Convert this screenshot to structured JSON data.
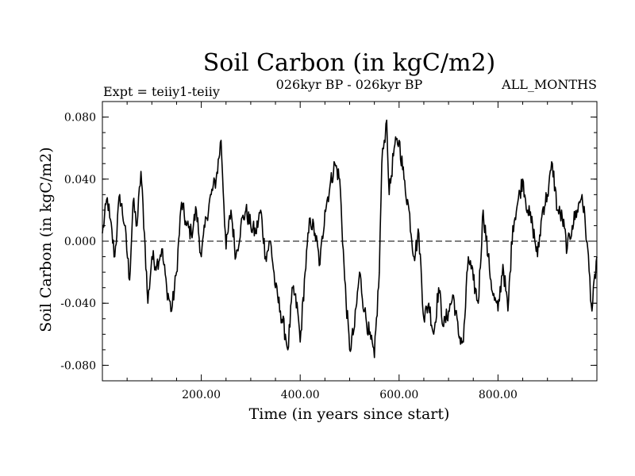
{
  "chart_data": {
    "type": "line",
    "title": "Soil Carbon (in kgC/m2)",
    "subtitle_left": "Expt = teiiy1-teiiy",
    "subtitle_center": "026kyr BP - 026kyr BP",
    "subtitle_right": "ALL_MONTHS",
    "xlabel": "Time (in years since start)",
    "ylabel": "Soil Carbon (in kgC/m2)",
    "xlim": [
      0,
      1000
    ],
    "ylim": [
      -0.09,
      0.09
    ],
    "xticks": [
      200,
      400,
      600,
      800
    ],
    "xtick_labels": [
      "200.00",
      "400.00",
      "600.00",
      "800.00"
    ],
    "yticks": [
      0.08,
      0.04,
      0.0,
      -0.04,
      -0.08
    ],
    "ytick_labels": [
      "0.080",
      "0.040",
      "0.000",
      "-0.040",
      "-0.080"
    ],
    "zero_line": {
      "y": 0.0,
      "style": "dashed"
    },
    "series": [
      {
        "color": "#000000",
        "x": [
          0,
          10,
          15,
          25,
          35,
          45,
          55,
          62,
          70,
          78,
          85,
          92,
          100,
          110,
          120,
          130,
          140,
          150,
          160,
          170,
          180,
          190,
          200,
          210,
          220,
          230,
          240,
          250,
          260,
          270,
          280,
          290,
          300,
          310,
          320,
          330,
          340,
          350,
          360,
          370,
          375,
          385,
          395,
          400,
          410,
          420,
          430,
          440,
          450,
          460,
          470,
          480,
          490,
          500,
          510,
          520,
          530,
          540,
          550,
          560,
          565,
          570,
          575,
          580,
          590,
          600,
          610,
          620,
          630,
          640,
          650,
          660,
          670,
          680,
          690,
          700,
          710,
          720,
          730,
          740,
          750,
          760,
          770,
          780,
          790,
          800,
          810,
          820,
          830,
          840,
          850,
          860,
          870,
          880,
          890,
          900,
          910,
          920,
          930,
          940,
          950,
          960,
          970,
          980,
          990,
          1000
        ],
        "values": [
          0.005,
          0.028,
          0.015,
          -0.01,
          0.03,
          0.01,
          -0.025,
          0.025,
          0.01,
          0.045,
          0.005,
          -0.04,
          -0.01,
          -0.015,
          -0.005,
          -0.03,
          -0.045,
          -0.02,
          0.025,
          0.01,
          0.005,
          0.02,
          -0.01,
          0.015,
          0.03,
          0.04,
          0.065,
          -0.005,
          0.02,
          -0.01,
          0.01,
          0.02,
          0.01,
          0.005,
          0.02,
          -0.01,
          0.0,
          -0.03,
          -0.045,
          -0.06,
          -0.07,
          -0.03,
          -0.045,
          -0.065,
          -0.02,
          0.015,
          0.005,
          -0.015,
          0.02,
          0.035,
          0.05,
          0.04,
          -0.025,
          -0.07,
          -0.055,
          -0.02,
          -0.045,
          -0.06,
          -0.075,
          -0.02,
          0.05,
          0.065,
          0.078,
          0.03,
          0.06,
          0.065,
          0.04,
          0.02,
          -0.01,
          0.005,
          -0.05,
          -0.04,
          -0.06,
          -0.03,
          -0.055,
          -0.045,
          -0.035,
          -0.06,
          -0.065,
          -0.01,
          -0.025,
          -0.04,
          0.02,
          -0.01,
          -0.035,
          -0.045,
          -0.015,
          -0.045,
          0.01,
          0.025,
          0.04,
          0.02,
          0.01,
          -0.01,
          0.02,
          0.03,
          0.05,
          0.02,
          0.015,
          -0.005,
          0.01,
          0.02,
          0.03,
          0.0,
          -0.045,
          -0.01
        ]
      }
    ]
  }
}
